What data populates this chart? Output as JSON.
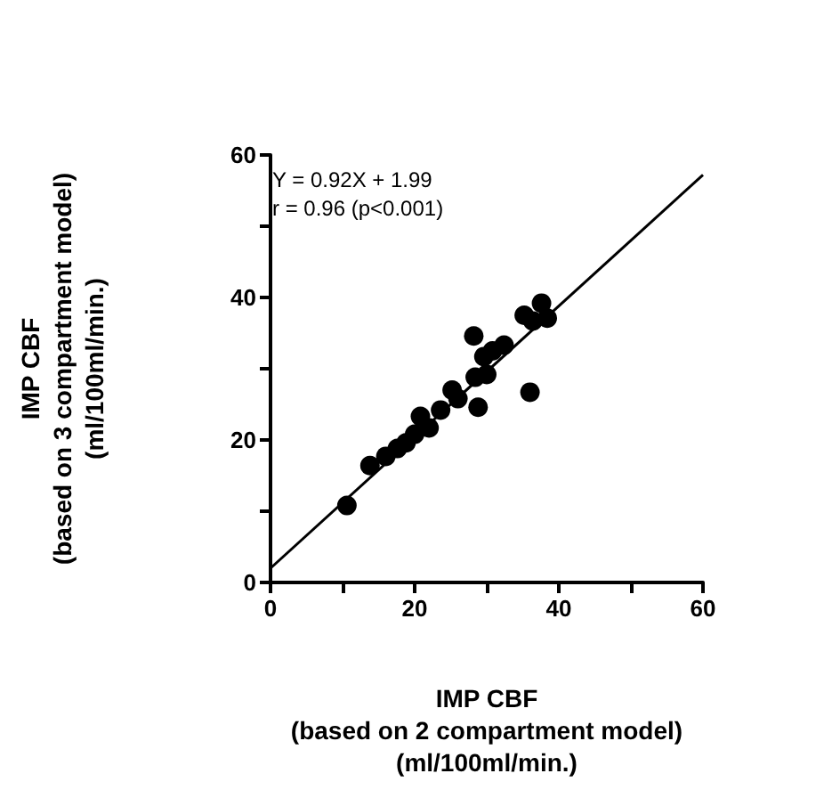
{
  "chart_data": {
    "type": "scatter",
    "xlabel": "IMP CBF\n(based on 2 compartment model)\n(ml/100ml/min.)",
    "ylabel": "IMP CBF\n(based on 3 compartment model)\n(ml/100ml/min.)",
    "annotations": [
      "Y = 0.92X + 1.99\nr = 0.96 (p<0.001)"
    ],
    "xlim": [
      0,
      60
    ],
    "ylim": [
      0,
      60
    ],
    "xticks": [
      0,
      {
        "value": 10,
        "label": null
      },
      20,
      {
        "value": 30,
        "label": null
      },
      40,
      {
        "value": 50,
        "label": null
      },
      60
    ],
    "yticks": [
      0,
      {
        "value": 10,
        "label": null
      },
      20,
      {
        "value": 30,
        "label": null
      },
      40,
      {
        "value": 50,
        "label": null
      },
      60
    ],
    "grid": false,
    "marker": "circle",
    "series": [
      {
        "color": "#000000",
        "x": [
          10.6,
          13.8,
          16,
          17.6,
          18.8,
          20,
          23.6,
          25.2,
          28.8,
          28.2,
          28.4,
          30,
          29.6,
          30.8,
          32.4,
          35.2,
          36,
          37.6,
          38.4,
          36.4,
          20.8,
          22,
          26
        ],
        "values": [
          10.8,
          16.4,
          17.7,
          18.8,
          19.6,
          20.8,
          24.2,
          27,
          24.6,
          34.6,
          28.8,
          29.2,
          31.7,
          32.5,
          33.3,
          37.5,
          26.7,
          39.2,
          37.1,
          36.7,
          23.3,
          21.7,
          25.8
        ]
      },
      {
        "type": "line",
        "color": "#000000",
        "marker": "none",
        "line_style": "solid",
        "x": [
          0,
          60
        ],
        "values": [
          2,
          57.2
        ]
      }
    ]
  }
}
